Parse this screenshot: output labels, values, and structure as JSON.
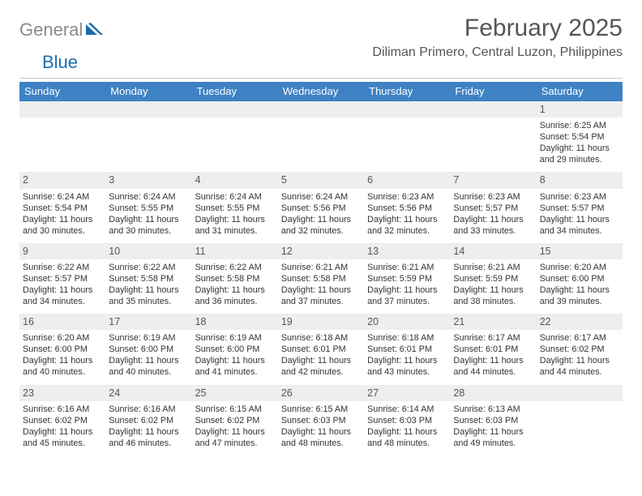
{
  "logo": {
    "gray": "General",
    "blue": "Blue"
  },
  "title": "February 2025",
  "location": "Diliman Primero, Central Luzon, Philippines",
  "colors": {
    "header_bg": "#3e82c4",
    "header_text": "#ffffff",
    "daynum_bg": "#eeeeee",
    "body_text": "#333333",
    "title_text": "#555555",
    "logo_gray": "#8a8a8a",
    "logo_blue": "#1a6fb0",
    "divider": "#c9c9c9"
  },
  "dow": [
    "Sunday",
    "Monday",
    "Tuesday",
    "Wednesday",
    "Thursday",
    "Friday",
    "Saturday"
  ],
  "weeks": [
    [
      null,
      null,
      null,
      null,
      null,
      null,
      {
        "n": "1",
        "sr": "Sunrise: 6:25 AM",
        "ss": "Sunset: 5:54 PM",
        "dl": "Daylight: 11 hours and 29 minutes."
      }
    ],
    [
      {
        "n": "2",
        "sr": "Sunrise: 6:24 AM",
        "ss": "Sunset: 5:54 PM",
        "dl": "Daylight: 11 hours and 30 minutes."
      },
      {
        "n": "3",
        "sr": "Sunrise: 6:24 AM",
        "ss": "Sunset: 5:55 PM",
        "dl": "Daylight: 11 hours and 30 minutes."
      },
      {
        "n": "4",
        "sr": "Sunrise: 6:24 AM",
        "ss": "Sunset: 5:55 PM",
        "dl": "Daylight: 11 hours and 31 minutes."
      },
      {
        "n": "5",
        "sr": "Sunrise: 6:24 AM",
        "ss": "Sunset: 5:56 PM",
        "dl": "Daylight: 11 hours and 32 minutes."
      },
      {
        "n": "6",
        "sr": "Sunrise: 6:23 AM",
        "ss": "Sunset: 5:56 PM",
        "dl": "Daylight: 11 hours and 32 minutes."
      },
      {
        "n": "7",
        "sr": "Sunrise: 6:23 AM",
        "ss": "Sunset: 5:57 PM",
        "dl": "Daylight: 11 hours and 33 minutes."
      },
      {
        "n": "8",
        "sr": "Sunrise: 6:23 AM",
        "ss": "Sunset: 5:57 PM",
        "dl": "Daylight: 11 hours and 34 minutes."
      }
    ],
    [
      {
        "n": "9",
        "sr": "Sunrise: 6:22 AM",
        "ss": "Sunset: 5:57 PM",
        "dl": "Daylight: 11 hours and 34 minutes."
      },
      {
        "n": "10",
        "sr": "Sunrise: 6:22 AM",
        "ss": "Sunset: 5:58 PM",
        "dl": "Daylight: 11 hours and 35 minutes."
      },
      {
        "n": "11",
        "sr": "Sunrise: 6:22 AM",
        "ss": "Sunset: 5:58 PM",
        "dl": "Daylight: 11 hours and 36 minutes."
      },
      {
        "n": "12",
        "sr": "Sunrise: 6:21 AM",
        "ss": "Sunset: 5:58 PM",
        "dl": "Daylight: 11 hours and 37 minutes."
      },
      {
        "n": "13",
        "sr": "Sunrise: 6:21 AM",
        "ss": "Sunset: 5:59 PM",
        "dl": "Daylight: 11 hours and 37 minutes."
      },
      {
        "n": "14",
        "sr": "Sunrise: 6:21 AM",
        "ss": "Sunset: 5:59 PM",
        "dl": "Daylight: 11 hours and 38 minutes."
      },
      {
        "n": "15",
        "sr": "Sunrise: 6:20 AM",
        "ss": "Sunset: 6:00 PM",
        "dl": "Daylight: 11 hours and 39 minutes."
      }
    ],
    [
      {
        "n": "16",
        "sr": "Sunrise: 6:20 AM",
        "ss": "Sunset: 6:00 PM",
        "dl": "Daylight: 11 hours and 40 minutes."
      },
      {
        "n": "17",
        "sr": "Sunrise: 6:19 AM",
        "ss": "Sunset: 6:00 PM",
        "dl": "Daylight: 11 hours and 40 minutes."
      },
      {
        "n": "18",
        "sr": "Sunrise: 6:19 AM",
        "ss": "Sunset: 6:00 PM",
        "dl": "Daylight: 11 hours and 41 minutes."
      },
      {
        "n": "19",
        "sr": "Sunrise: 6:18 AM",
        "ss": "Sunset: 6:01 PM",
        "dl": "Daylight: 11 hours and 42 minutes."
      },
      {
        "n": "20",
        "sr": "Sunrise: 6:18 AM",
        "ss": "Sunset: 6:01 PM",
        "dl": "Daylight: 11 hours and 43 minutes."
      },
      {
        "n": "21",
        "sr": "Sunrise: 6:17 AM",
        "ss": "Sunset: 6:01 PM",
        "dl": "Daylight: 11 hours and 44 minutes."
      },
      {
        "n": "22",
        "sr": "Sunrise: 6:17 AM",
        "ss": "Sunset: 6:02 PM",
        "dl": "Daylight: 11 hours and 44 minutes."
      }
    ],
    [
      {
        "n": "23",
        "sr": "Sunrise: 6:16 AM",
        "ss": "Sunset: 6:02 PM",
        "dl": "Daylight: 11 hours and 45 minutes."
      },
      {
        "n": "24",
        "sr": "Sunrise: 6:16 AM",
        "ss": "Sunset: 6:02 PM",
        "dl": "Daylight: 11 hours and 46 minutes."
      },
      {
        "n": "25",
        "sr": "Sunrise: 6:15 AM",
        "ss": "Sunset: 6:02 PM",
        "dl": "Daylight: 11 hours and 47 minutes."
      },
      {
        "n": "26",
        "sr": "Sunrise: 6:15 AM",
        "ss": "Sunset: 6:03 PM",
        "dl": "Daylight: 11 hours and 48 minutes."
      },
      {
        "n": "27",
        "sr": "Sunrise: 6:14 AM",
        "ss": "Sunset: 6:03 PM",
        "dl": "Daylight: 11 hours and 48 minutes."
      },
      {
        "n": "28",
        "sr": "Sunrise: 6:13 AM",
        "ss": "Sunset: 6:03 PM",
        "dl": "Daylight: 11 hours and 49 minutes."
      },
      null
    ]
  ]
}
